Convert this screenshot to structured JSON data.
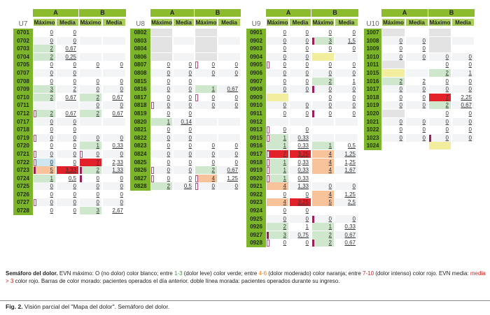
{
  "headers": {
    "a": "A",
    "b": "B",
    "max": "Máximo",
    "media": "Media"
  },
  "units": [
    {
      "name": "U7",
      "rows": [
        {
          "id": "0701",
          "c": [
            "0",
            "0",
            "",
            ""
          ]
        },
        {
          "id": "0702",
          "c": [
            "0",
            "0",
            "",
            ""
          ]
        },
        {
          "id": "0703",
          "c": [
            "2|g",
            "0,67",
            "",
            ""
          ]
        },
        {
          "id": "0704",
          "c": [
            "2|g",
            "0,25",
            "",
            ""
          ]
        },
        {
          "id": "0705",
          "c": [
            "0",
            "0",
            "0",
            "0"
          ]
        },
        {
          "id": "0707",
          "c": [
            "0",
            "0",
            "",
            ""
          ]
        },
        {
          "id": "0708",
          "c": [
            "0",
            "0",
            "0",
            "0"
          ]
        },
        {
          "id": "0709",
          "c": [
            "3|g",
            "2",
            "0",
            "0"
          ]
        },
        {
          "id": "0710",
          "c": [
            "2|g",
            "0,67",
            "2|g",
            "0,67"
          ]
        },
        {
          "id": "0711",
          "c": [
            "",
            "",
            "0",
            "0"
          ]
        },
        {
          "id": "0712",
          "c": [
            "2|g",
            "0,67",
            "2|g",
            "0,67"
          ],
          "m": [
            "oa"
          ]
        },
        {
          "id": "0717",
          "c": [
            "0",
            "0",
            "",
            ""
          ]
        },
        {
          "id": "0718",
          "c": [
            "0",
            "0",
            "",
            ""
          ]
        },
        {
          "id": "0719",
          "c": [
            "0",
            "0",
            "0",
            "0"
          ],
          "m": [
            "oa"
          ]
        },
        {
          "id": "0720",
          "c": [
            "0",
            "0",
            "1|g",
            "0,33"
          ]
        },
        {
          "id": "0721",
          "c": [
            "0",
            "0",
            "0",
            "0"
          ],
          "m": [
            "oa",
            "ob"
          ]
        },
        {
          "id": "0722",
          "c": [
            "0|b",
            "0",
            "7|r",
            "2,33"
          ],
          "m": [
            "oa"
          ]
        },
        {
          "id": "0723",
          "c": [
            "5|o",
            "3,33|r",
            "2|g",
            "1,33"
          ],
          "m": [
            "pa",
            "pb"
          ]
        },
        {
          "id": "0724",
          "c": [
            "1|g",
            "0,5",
            "0",
            "0"
          ],
          "m": [
            "pb"
          ]
        },
        {
          "id": "0725",
          "c": [
            "0",
            "0",
            "0",
            "0"
          ]
        },
        {
          "id": "0726",
          "c": [
            "0",
            "0",
            "0",
            "0"
          ]
        },
        {
          "id": "0727",
          "c": [
            "0",
            "0",
            "0",
            "0"
          ],
          "m": [
            "oa"
          ]
        },
        {
          "id": "0728",
          "c": [
            "0",
            "0",
            "3|g",
            "2,67"
          ]
        }
      ]
    },
    {
      "name": "U8",
      "rows": [
        {
          "id": "0802",
          "c": [
            "|x",
            "",
            "|x",
            ""
          ]
        },
        {
          "id": "0803",
          "c": [
            "|x",
            "",
            "|x",
            ""
          ]
        },
        {
          "id": "0804",
          "c": [
            "|x",
            "",
            "|x",
            ""
          ]
        },
        {
          "id": "0806",
          "c": [
            "|x",
            "",
            "|x",
            ""
          ]
        },
        {
          "id": "0807",
          "c": [
            "0",
            "0",
            "0",
            "0"
          ],
          "m": [
            "ob"
          ]
        },
        {
          "id": "0808",
          "c": [
            "0",
            "0",
            "0",
            "0"
          ]
        },
        {
          "id": "0815",
          "c": [
            "0",
            "0",
            "",
            ""
          ]
        },
        {
          "id": "0816",
          "c": [
            "0",
            "0",
            "1|g",
            "0,67"
          ]
        },
        {
          "id": "0817",
          "c": [
            "0",
            "0",
            "0",
            "0"
          ],
          "m": [
            "ob"
          ]
        },
        {
          "id": "0818",
          "c": [
            "0",
            "0",
            "0",
            "0"
          ],
          "m": [
            "oa"
          ]
        },
        {
          "id": "0819",
          "c": [
            "0",
            "0",
            "",
            ""
          ]
        },
        {
          "id": "0820",
          "c": [
            "1|g",
            "0,14",
            "",
            ""
          ]
        },
        {
          "id": "0821",
          "c": [
            "0",
            "0",
            "",
            ""
          ]
        },
        {
          "id": "0822",
          "c": [
            "0",
            "0",
            "",
            ""
          ]
        },
        {
          "id": "0823",
          "c": [
            "0",
            "0",
            "0",
            "0"
          ]
        },
        {
          "id": "0824",
          "c": [
            "0",
            "0",
            "0",
            "0"
          ]
        },
        {
          "id": "0825",
          "c": [
            "0",
            "0",
            "0",
            "0"
          ]
        },
        {
          "id": "0826",
          "c": [
            "0",
            "0",
            "2|g",
            "0,67"
          ],
          "m": [
            "oa"
          ]
        },
        {
          "id": "0827",
          "c": [
            "0",
            "0",
            "4|o",
            "1,25"
          ],
          "m": [
            "oa",
            "ob"
          ]
        },
        {
          "id": "0828",
          "c": [
            "2|g",
            "0,5",
            "0",
            "0"
          ],
          "m": [
            "ob"
          ]
        }
      ]
    },
    {
      "name": "U9",
      "rows": [
        {
          "id": "0901",
          "c": [
            "0",
            "0",
            "0",
            "0"
          ]
        },
        {
          "id": "0902",
          "c": [
            "0",
            "0",
            "3|g",
            "1,5"
          ],
          "m": [
            "pb"
          ]
        },
        {
          "id": "0903",
          "c": [
            "0",
            "0",
            "0",
            "0"
          ]
        },
        {
          "id": "0904",
          "c": [
            "0",
            "0",
            "|y",
            ""
          ]
        },
        {
          "id": "0905",
          "c": [
            "0",
            "0",
            "0",
            "0"
          ],
          "m": [
            "oa"
          ]
        },
        {
          "id": "0906",
          "c": [
            "0",
            "0",
            "0",
            "0"
          ]
        },
        {
          "id": "0907",
          "c": [
            "0",
            "0",
            "2|g",
            "1"
          ]
        },
        {
          "id": "0908",
          "c": [
            "0",
            "0",
            "0",
            "0"
          ],
          "m": [
            "pb"
          ]
        },
        {
          "id": "0909",
          "c": [
            "|y",
            "",
            "0",
            "0"
          ]
        },
        {
          "id": "0910",
          "c": [
            "0",
            "0",
            "0",
            "0"
          ]
        },
        {
          "id": "0911",
          "c": [
            "0",
            "0",
            "0",
            "0"
          ],
          "m": [
            "pb"
          ]
        },
        {
          "id": "0912",
          "c": [
            "",
            "",
            "",
            ""
          ]
        },
        {
          "id": "0913",
          "c": [
            "0",
            "0",
            "",
            ""
          ],
          "m": [
            "oa"
          ]
        },
        {
          "id": "0915",
          "c": [
            "1|g",
            "0,33",
            "",
            ""
          ],
          "m": [
            "oa"
          ]
        },
        {
          "id": "0916",
          "c": [
            "1|g",
            "0,33",
            "1|g",
            "0,5"
          ]
        },
        {
          "id": "0917",
          "c": [
            "7|r",
            "3,25|r",
            "4|o",
            "1,25"
          ],
          "m": [
            "oa"
          ]
        },
        {
          "id": "0918",
          "c": [
            "1|g",
            "0,33",
            "4|o",
            "1,25"
          ],
          "m": [
            "oa"
          ]
        },
        {
          "id": "0919",
          "c": [
            "1|g",
            "0,33",
            "4|o",
            "1,67"
          ],
          "m": [
            "oa"
          ]
        },
        {
          "id": "0920",
          "c": [
            "1|g",
            "0,33",
            "",
            ""
          ],
          "m": [
            "oa"
          ]
        },
        {
          "id": "0921",
          "c": [
            "4|o",
            "1,33",
            "0",
            "0"
          ]
        },
        {
          "id": "0922",
          "c": [
            "0",
            "0",
            "4|o",
            "1,25"
          ]
        },
        {
          "id": "0923",
          "c": [
            "4|o",
            "3,25|r",
            "5|o",
            "2,5"
          ]
        },
        {
          "id": "0924",
          "c": [
            "0",
            "0",
            "",
            ""
          ]
        },
        {
          "id": "0925",
          "c": [
            "0",
            "0",
            "0",
            "0"
          ],
          "m": [
            "pb"
          ]
        },
        {
          "id": "0926",
          "c": [
            "2|g",
            "1",
            "1|g",
            "0,33"
          ]
        },
        {
          "id": "0927",
          "c": [
            "3|g",
            "0,75",
            "2|g",
            "0,67"
          ],
          "m": [
            "pa"
          ]
        },
        {
          "id": "0928",
          "c": [
            "0",
            "0",
            "2|g",
            "0,67"
          ],
          "m": [
            "oa",
            "pb"
          ]
        }
      ]
    },
    {
      "name": "U10",
      "rows": [
        {
          "id": "1007",
          "c": [
            "|x",
            "",
            "|x",
            ""
          ]
        },
        {
          "id": "1008",
          "c": [
            "0",
            "0",
            "|x",
            ""
          ]
        },
        {
          "id": "1009",
          "c": [
            "0",
            "0",
            "|x",
            ""
          ]
        },
        {
          "id": "1010",
          "c": [
            "0",
            "0",
            "0",
            "0"
          ]
        },
        {
          "id": "1011",
          "c": [
            "|x",
            "",
            "0",
            "0"
          ]
        },
        {
          "id": "1015",
          "c": [
            "|y",
            "",
            "2|g",
            "1"
          ]
        },
        {
          "id": "1016",
          "c": [
            "2|g",
            "2",
            "0",
            "0"
          ]
        },
        {
          "id": "1017",
          "c": [
            "0",
            "0",
            "0",
            "0"
          ]
        },
        {
          "id": "1018",
          "c": [
            "0",
            "0",
            "7|r",
            "2,25"
          ]
        },
        {
          "id": "1019",
          "c": [
            "0",
            "0",
            "2|g",
            "0,67"
          ]
        },
        {
          "id": "1020",
          "c": [
            "|x",
            "",
            "0",
            "0"
          ]
        },
        {
          "id": "1021",
          "c": [
            "0",
            "0",
            "0",
            "0"
          ]
        },
        {
          "id": "1022",
          "c": [
            "0",
            "0",
            "0",
            "0"
          ]
        },
        {
          "id": "1023",
          "c": [
            "0",
            "0",
            "0",
            "0"
          ],
          "m": [
            "pb"
          ]
        },
        {
          "id": "1024",
          "c": [
            "",
            "",
            "|y",
            ""
          ]
        }
      ]
    }
  ],
  "colors": {
    "g": "#cfe8cd",
    "o": "#f8c29a",
    "r": "#e3212a",
    "b": "#cde6f0",
    "y": "#f3ee9e",
    "x": "#e3e3e3",
    "purple": "#9c1f5a",
    "header": "#8cbb2e"
  },
  "legend": {
    "title": "Semáforo del dolor.",
    "t1": " EVN máximo: O (no dolor) color blanco; entre ",
    "g": "1-3",
    "t2": " (dolor leve) color verde; entre ",
    "o": "4-6",
    "t3": " (dolor moderado) color naranja; entre ",
    "r": "7-10",
    "t4": " (dolor intenso) color rojo. EVN media: ",
    "m": "media > 3",
    "t5": " color rojo. Barras de color morado: pacientes operados el día anterior. doble línea morada: pacientes operados durante su ingreso."
  },
  "figure": {
    "label": "Fig. 2.",
    "caption": " Visión parcial del \"Mapa del dolor\". Semáforo del dolor."
  }
}
